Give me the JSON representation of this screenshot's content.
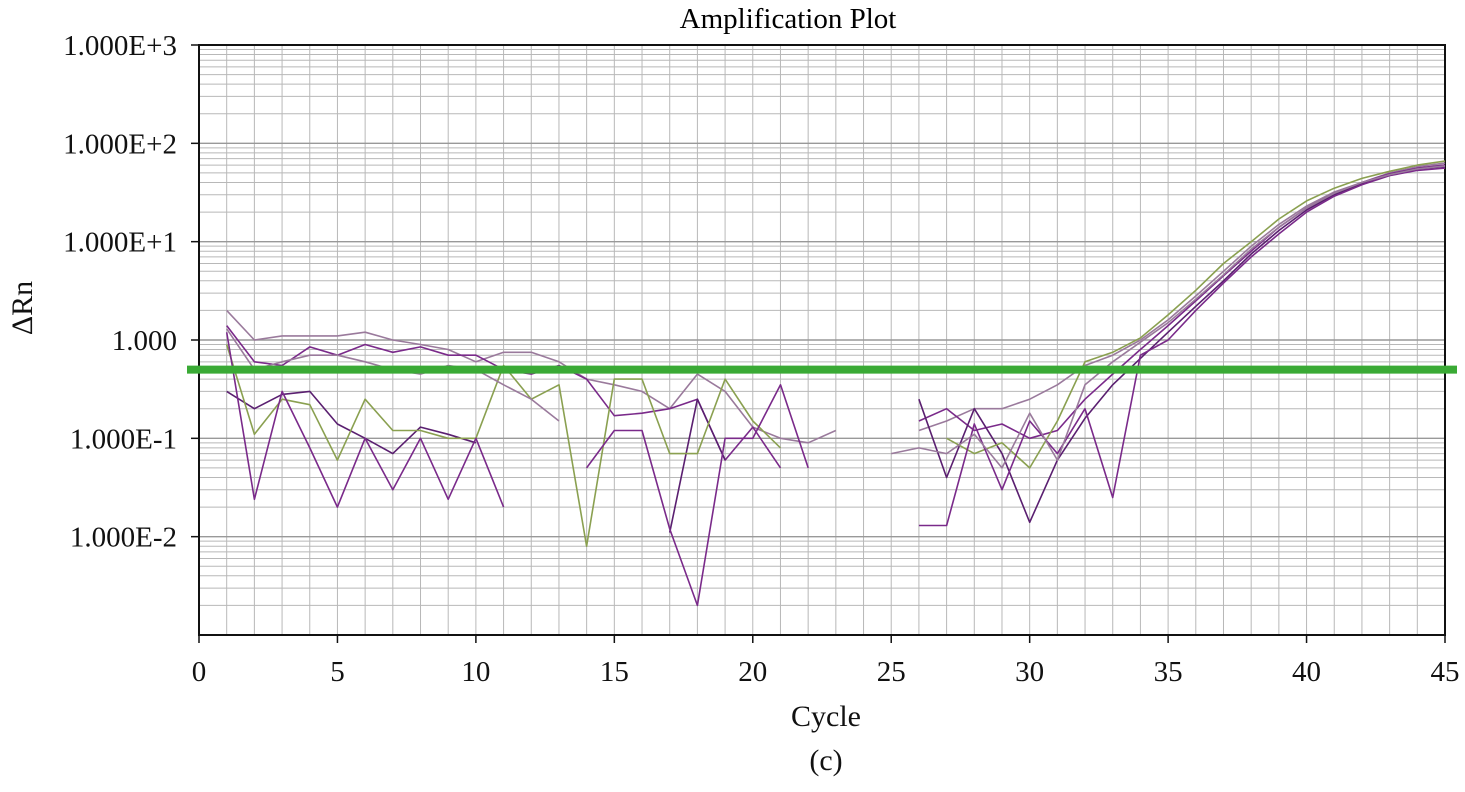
{
  "chart_data": {
    "type": "line",
    "title": "Amplification Plot",
    "xlabel": "Cycle",
    "ylabel": "ΔRn",
    "caption": "(c)",
    "xlim": [
      0,
      45
    ],
    "ylim": [
      0.001,
      1000
    ],
    "yscale": "log",
    "grid": true,
    "legend": "none",
    "x_ticks": [
      0,
      5,
      10,
      15,
      20,
      25,
      30,
      35,
      40,
      45
    ],
    "x_tick_labels": [
      "0",
      "5",
      "10",
      "15",
      "20",
      "25",
      "30",
      "35",
      "40",
      "45"
    ],
    "y_ticks": [
      1000,
      100,
      10,
      1,
      0.1,
      0.01
    ],
    "y_tick_labels": [
      "1.000E+3",
      "1.000E+2",
      "1.000E+1",
      "1.000",
      "1.000E-1",
      "1.000E-2"
    ],
    "threshold": {
      "value": 0.5,
      "color": "#3aaa35"
    },
    "colors": {
      "purple": "#7a2a8a",
      "dark_purple": "#5a1f70",
      "mauve": "#9a7a9c",
      "olive": "#8aa050",
      "grid": "#b8b8b8"
    },
    "series": [
      {
        "color": "#9a7a9c",
        "segments": [
          [
            [
              1,
              2.0
            ],
            [
              2,
              1.0
            ],
            [
              3,
              1.1
            ],
            [
              4,
              1.1
            ],
            [
              5,
              1.1
            ],
            [
              6,
              1.2
            ],
            [
              7,
              1.0
            ],
            [
              8,
              0.9
            ],
            [
              9,
              0.8
            ],
            [
              10,
              0.6
            ],
            [
              11,
              0.75
            ],
            [
              12,
              0.75
            ],
            [
              13,
              0.6
            ],
            [
              14,
              0.4
            ],
            [
              15,
              0.35
            ],
            [
              16,
              0.3
            ],
            [
              17,
              0.2
            ],
            [
              18,
              0.45
            ],
            [
              19,
              0.3
            ],
            [
              20,
              0.13
            ],
            [
              21,
              0.1
            ],
            [
              22,
              0.09
            ],
            [
              23,
              0.12
            ]
          ],
          [
            [
              26,
              0.12
            ],
            [
              27,
              0.15
            ],
            [
              28,
              0.2
            ],
            [
              29,
              0.2
            ],
            [
              30,
              0.25
            ],
            [
              31,
              0.35
            ],
            [
              32,
              0.55
            ],
            [
              33,
              0.7
            ],
            [
              34,
              1.0
            ],
            [
              35,
              1.6
            ],
            [
              36,
              2.8
            ],
            [
              37,
              5.0
            ],
            [
              38,
              9.0
            ],
            [
              39,
              15
            ],
            [
              40,
              23
            ],
            [
              41,
              32
            ],
            [
              42,
              40
            ],
            [
              43,
              50
            ],
            [
              44,
              58
            ],
            [
              45,
              63
            ]
          ]
        ]
      },
      {
        "color": "#7a2a8a",
        "segments": [
          [
            [
              1,
              1.4
            ],
            [
              2,
              0.6
            ],
            [
              3,
              0.55
            ],
            [
              4,
              0.85
            ],
            [
              5,
              0.7
            ],
            [
              6,
              0.9
            ],
            [
              7,
              0.75
            ],
            [
              8,
              0.85
            ],
            [
              9,
              0.7
            ],
            [
              10,
              0.7
            ],
            [
              11,
              0.5
            ],
            [
              12,
              0.45
            ],
            [
              13,
              0.55
            ],
            [
              14,
              0.4
            ],
            [
              15,
              0.17
            ],
            [
              16,
              0.18
            ],
            [
              17,
              0.2
            ],
            [
              18,
              0.25
            ],
            [
              19,
              0.06
            ],
            [
              20,
              0.13
            ],
            [
              21,
              0.05
            ]
          ],
          [
            [
              26,
              0.15
            ],
            [
              27,
              0.2
            ],
            [
              28,
              0.12
            ],
            [
              29,
              0.14
            ],
            [
              30,
              0.1
            ],
            [
              31,
              0.12
            ],
            [
              32,
              0.25
            ],
            [
              33,
              0.45
            ],
            [
              34,
              0.8
            ],
            [
              35,
              1.4
            ],
            [
              36,
              2.5
            ],
            [
              37,
              4.5
            ],
            [
              38,
              8
            ],
            [
              39,
              14
            ],
            [
              40,
              22
            ],
            [
              41,
              31
            ],
            [
              42,
              40
            ],
            [
              43,
              49
            ],
            [
              44,
              56
            ],
            [
              45,
              60
            ]
          ]
        ]
      },
      {
        "color": "#5a1f70",
        "segments": [
          [
            [
              1,
              0.3
            ],
            [
              2,
              0.2
            ],
            [
              3,
              0.28
            ],
            [
              4,
              0.3
            ],
            [
              5,
              0.14
            ],
            [
              6,
              0.1
            ],
            [
              7,
              0.07
            ],
            [
              8,
              0.13
            ],
            [
              9,
              0.11
            ],
            [
              10,
              0.09
            ]
          ],
          [
            [
              17,
              0.011
            ],
            [
              18,
              0.25
            ],
            [
              19,
              0.06
            ]
          ],
          [
            [
              26,
              0.25
            ],
            [
              27,
              0.04
            ],
            [
              28,
              0.2
            ],
            [
              29,
              0.07
            ],
            [
              30,
              0.014
            ],
            [
              31,
              0.06
            ],
            [
              32,
              0.16
            ],
            [
              33,
              0.35
            ],
            [
              34,
              0.65
            ],
            [
              35,
              1.2
            ],
            [
              36,
              2.2
            ],
            [
              37,
              4.0
            ],
            [
              38,
              7.5
            ],
            [
              39,
              13
            ],
            [
              40,
              21
            ],
            [
              41,
              30
            ],
            [
              42,
              39
            ],
            [
              43,
              48
            ],
            [
              44,
              55
            ],
            [
              45,
              58
            ]
          ]
        ]
      },
      {
        "color": "#8aa050",
        "segments": [
          [
            [
              1,
              0.9
            ],
            [
              2,
              0.11
            ],
            [
              3,
              0.25
            ],
            [
              4,
              0.22
            ],
            [
              5,
              0.06
            ],
            [
              6,
              0.25
            ],
            [
              7,
              0.12
            ],
            [
              8,
              0.12
            ],
            [
              9,
              0.1
            ],
            [
              10,
              0.1
            ],
            [
              11,
              0.55
            ],
            [
              12,
              0.25
            ],
            [
              13,
              0.35
            ],
            [
              14,
              0.008
            ],
            [
              15,
              0.4
            ],
            [
              16,
              0.4
            ],
            [
              17,
              0.07
            ],
            [
              18,
              0.07
            ],
            [
              19,
              0.4
            ],
            [
              20,
              0.15
            ],
            [
              21,
              0.08
            ]
          ],
          [
            [
              27,
              0.1
            ],
            [
              28,
              0.07
            ],
            [
              29,
              0.09
            ],
            [
              30,
              0.05
            ],
            [
              31,
              0.15
            ],
            [
              32,
              0.6
            ],
            [
              33,
              0.75
            ],
            [
              34,
              1.05
            ],
            [
              35,
              1.8
            ],
            [
              36,
              3.2
            ],
            [
              37,
              6
            ],
            [
              38,
              10
            ],
            [
              39,
              17
            ],
            [
              40,
              26
            ],
            [
              41,
              35
            ],
            [
              42,
              44
            ],
            [
              43,
              52
            ],
            [
              44,
              60
            ],
            [
              45,
              66
            ]
          ]
        ]
      },
      {
        "color": "#7a2a8a",
        "segments": [
          [
            [
              1,
              1.2
            ],
            [
              2,
              0.024
            ],
            [
              3,
              0.3
            ],
            [
              4,
              0.08
            ],
            [
              5,
              0.02
            ],
            [
              6,
              0.1
            ],
            [
              7,
              0.03
            ],
            [
              8,
              0.1
            ],
            [
              9,
              0.024
            ],
            [
              10,
              0.1
            ],
            [
              11,
              0.02
            ]
          ],
          [
            [
              14,
              0.05
            ],
            [
              15,
              0.12
            ],
            [
              16,
              0.12
            ],
            [
              17,
              0.012
            ],
            [
              18,
              0.002
            ],
            [
              19,
              0.1
            ],
            [
              20,
              0.1
            ],
            [
              21,
              0.35
            ],
            [
              22,
              0.05
            ]
          ],
          [
            [
              26,
              0.013
            ],
            [
              27,
              0.013
            ],
            [
              28,
              0.14
            ],
            [
              29,
              0.03
            ],
            [
              30,
              0.15
            ],
            [
              31,
              0.07
            ],
            [
              32,
              0.2
            ],
            [
              33,
              0.025
            ],
            [
              34,
              0.7
            ],
            [
              35,
              1.0
            ],
            [
              36,
              2.0
            ],
            [
              37,
              3.8
            ],
            [
              38,
              7
            ],
            [
              39,
              12
            ],
            [
              40,
              20
            ],
            [
              41,
              29
            ],
            [
              42,
              38
            ],
            [
              43,
              47
            ],
            [
              44,
              53
            ],
            [
              45,
              56
            ]
          ]
        ]
      },
      {
        "color": "#9a7a9c",
        "segments": [
          [
            [
              1,
              1.3
            ],
            [
              2,
              0.5
            ],
            [
              3,
              0.6
            ],
            [
              4,
              0.7
            ],
            [
              5,
              0.7
            ],
            [
              6,
              0.6
            ],
            [
              7,
              0.5
            ],
            [
              8,
              0.45
            ],
            [
              9,
              0.55
            ],
            [
              10,
              0.5
            ],
            [
              11,
              0.35
            ],
            [
              12,
              0.25
            ],
            [
              13,
              0.15
            ]
          ],
          [
            [
              25,
              0.07
            ],
            [
              26,
              0.08
            ],
            [
              27,
              0.07
            ],
            [
              28,
              0.11
            ],
            [
              29,
              0.05
            ],
            [
              30,
              0.18
            ],
            [
              31,
              0.06
            ],
            [
              32,
              0.35
            ],
            [
              33,
              0.6
            ],
            [
              34,
              0.95
            ],
            [
              35,
              1.5
            ],
            [
              36,
              2.6
            ],
            [
              37,
              4.6
            ],
            [
              38,
              8.4
            ],
            [
              39,
              14
            ],
            [
              40,
              22
            ],
            [
              41,
              31
            ],
            [
              42,
              40
            ],
            [
              43,
              48
            ],
            [
              44,
              55
            ],
            [
              45,
              59
            ]
          ]
        ]
      }
    ]
  }
}
